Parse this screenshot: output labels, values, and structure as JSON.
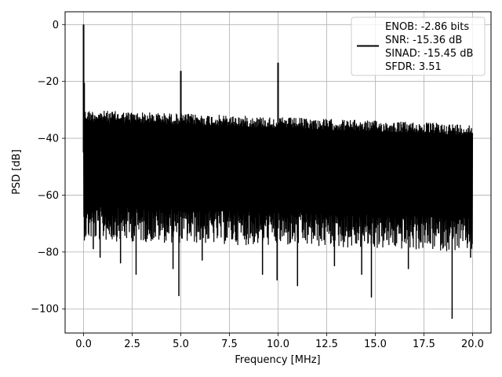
{
  "chart_data": {
    "type": "line",
    "title": "",
    "xlabel": "Frequency [MHz]",
    "ylabel": "PSD [dB]",
    "xlim": [
      -0.95,
      20.95
    ],
    "ylim": [
      -108.5,
      4.5
    ],
    "x_ticks": [
      0.0,
      2.5,
      5.0,
      7.5,
      10.0,
      12.5,
      15.0,
      17.5,
      20.0
    ],
    "x_tick_labels": [
      "0.0",
      "2.5",
      "5.0",
      "7.5",
      "10.0",
      "12.5",
      "15.0",
      "17.5",
      "20.0"
    ],
    "y_ticks": [
      0,
      -20,
      -40,
      -60,
      -80,
      -100
    ],
    "y_tick_labels": [
      "0",
      "−20",
      "−40",
      "−60",
      "−80",
      "−100"
    ],
    "grid": true,
    "legend": {
      "placement": "upper-right",
      "entries": [
        "ENOB: -2.86 bits",
        "SNR: -15.36 dB",
        "SINAD: -15.45 dB",
        "SFDR: 3.51"
      ]
    },
    "series": [
      {
        "color": "#000000",
        "spectrum": {
          "x_start": 0.0,
          "x_end": 20.0,
          "noise_upper_start": -30,
          "noise_upper_end": -35,
          "noise_lower_start": -64,
          "noise_lower_end": -68
        },
        "spikes": [
          {
            "x": 0.0,
            "y": 0.0
          },
          {
            "x": 0.03,
            "y": -20.5
          },
          {
            "x": 5.0,
            "y": -16.3
          },
          {
            "x": 10.0,
            "y": -13.4
          }
        ],
        "dips": [
          {
            "x": 0.5,
            "y": -79
          },
          {
            "x": 0.85,
            "y": -82
          },
          {
            "x": 1.9,
            "y": -84
          },
          {
            "x": 2.7,
            "y": -88
          },
          {
            "x": 4.6,
            "y": -86
          },
          {
            "x": 4.9,
            "y": -95.5
          },
          {
            "x": 6.1,
            "y": -83
          },
          {
            "x": 9.2,
            "y": -88
          },
          {
            "x": 9.95,
            "y": -90
          },
          {
            "x": 11.0,
            "y": -92
          },
          {
            "x": 12.9,
            "y": -85
          },
          {
            "x": 14.3,
            "y": -88
          },
          {
            "x": 14.8,
            "y": -96
          },
          {
            "x": 16.7,
            "y": -86
          },
          {
            "x": 18.95,
            "y": -103.5
          },
          {
            "x": 19.9,
            "y": -82
          }
        ]
      }
    ]
  }
}
